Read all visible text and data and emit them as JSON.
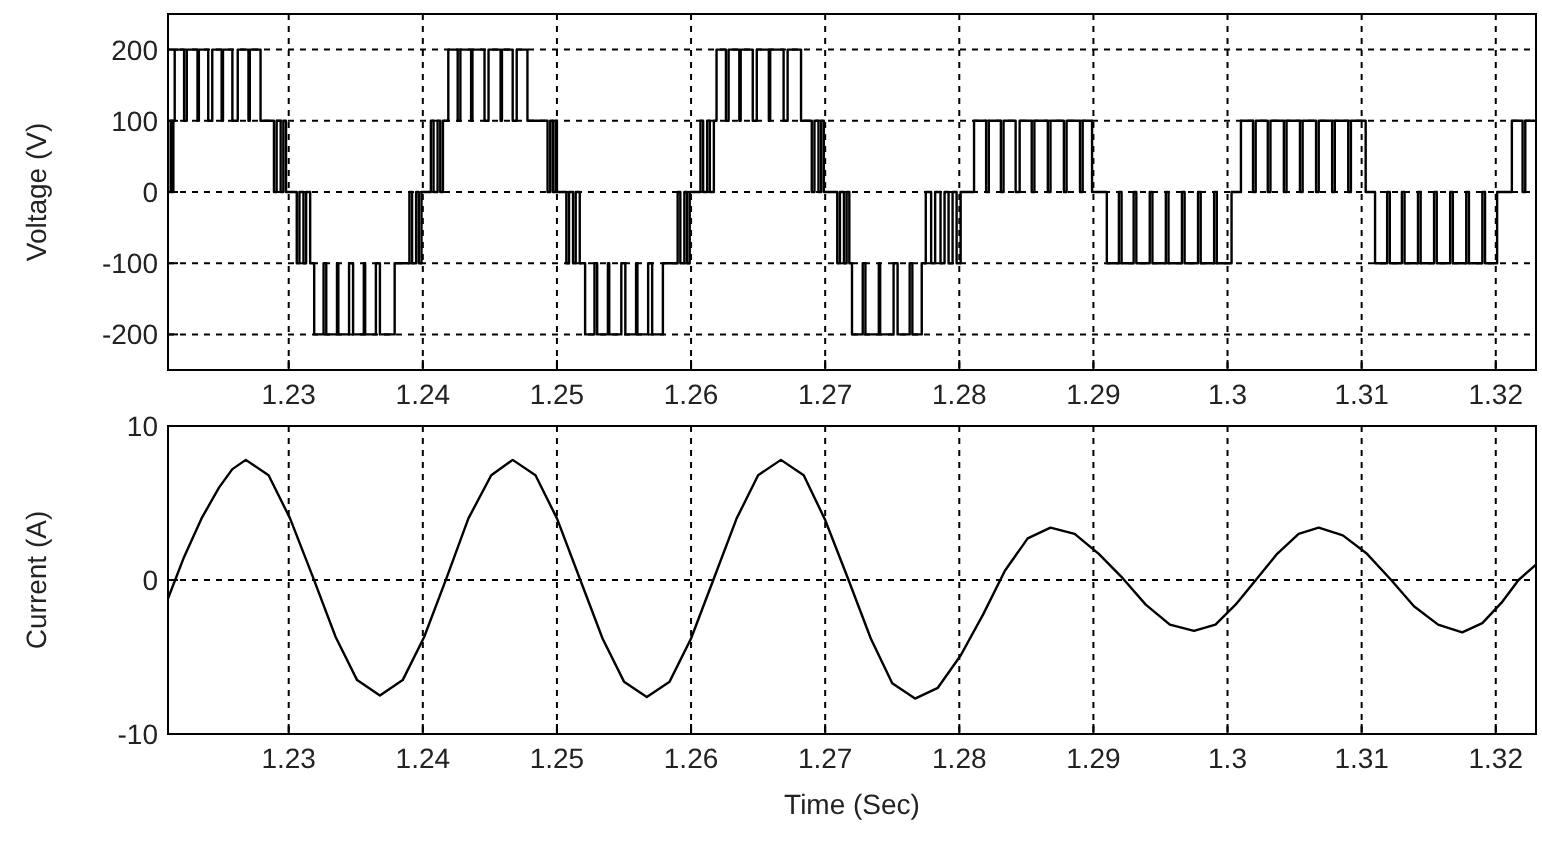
{
  "chart_data": [
    {
      "type": "step",
      "ylabel": "Voltage (V)",
      "color": "#000000",
      "line_style": "solid",
      "grid": true,
      "xlim": [
        1.221,
        1.323
      ],
      "xticks": [
        1.23,
        1.24,
        1.25,
        1.26,
        1.27,
        1.28,
        1.29,
        1.3,
        1.31,
        1.32
      ],
      "ylim": [
        -250,
        250
      ],
      "yticks": [
        -200,
        -100,
        0,
        100,
        200
      ],
      "x": [
        1.221,
        1.2212,
        1.2213,
        1.2214,
        1.2215,
        1.2222,
        1.2224,
        1.2232,
        1.2233,
        1.224,
        1.2243,
        1.225,
        1.2251,
        1.2258,
        1.2262,
        1.227,
        1.2271,
        1.2279,
        1.2289,
        1.2291,
        1.2294,
        1.2296,
        1.2298,
        1.2306,
        1.2308,
        1.2311,
        1.2313,
        1.2316,
        1.2319,
        1.2326,
        1.2328,
        1.2336,
        1.2337,
        1.2345,
        1.2348,
        1.2356,
        1.2357,
        1.2365,
        1.2368,
        1.2379,
        1.239,
        1.2392,
        1.2395,
        1.2397,
        1.2399,
        1.2406,
        1.2408,
        1.2411,
        1.2413,
        1.2415,
        1.2419,
        1.2426,
        1.2428,
        1.2436,
        1.2437,
        1.2446,
        1.2449,
        1.2458,
        1.2459,
        1.2467,
        1.247,
        1.2478,
        1.2493,
        1.2495,
        1.2497,
        1.2499,
        1.25,
        1.2507,
        1.2509,
        1.2512,
        1.2514,
        1.2517,
        1.2521,
        1.2528,
        1.253,
        1.2538,
        1.2539,
        1.2548,
        1.2551,
        1.2559,
        1.256,
        1.2568,
        1.2571,
        1.2579,
        1.259,
        1.2592,
        1.2595,
        1.2597,
        1.2599,
        1.2607,
        1.2609,
        1.2612,
        1.2614,
        1.2617,
        1.2619,
        1.2626,
        1.2628,
        1.2636,
        1.2637,
        1.2646,
        1.2649,
        1.2658,
        1.2659,
        1.2669,
        1.2672,
        1.2682,
        1.269,
        1.2692,
        1.2695,
        1.2697,
        1.2699,
        1.2709,
        1.2711,
        1.2714,
        1.2716,
        1.2718,
        1.272,
        1.2728,
        1.273,
        1.274,
        1.2741,
        1.2751,
        1.2754,
        1.2763,
        1.2765,
        1.2772,
        1.2775,
        1.2779,
        1.2782,
        1.2786,
        1.2789,
        1.2792,
        1.2795,
        1.2798,
        1.2801,
        1.2811,
        1.282,
        1.2822,
        1.2831,
        1.2833,
        1.2842,
        1.2845,
        1.2854,
        1.2856,
        1.2866,
        1.2868,
        1.2878,
        1.288,
        1.289,
        1.2892,
        1.2899,
        1.291,
        1.2919,
        1.2921,
        1.293,
        1.2932,
        1.2942,
        1.2944,
        1.2954,
        1.2956,
        1.2966,
        1.2968,
        1.2978,
        1.298,
        1.299,
        1.2992,
        1.3003,
        1.301,
        1.3019,
        1.3021,
        1.303,
        1.3032,
        1.3042,
        1.3044,
        1.3054,
        1.3056,
        1.3066,
        1.3068,
        1.3078,
        1.308,
        1.309,
        1.3092,
        1.3103,
        1.311,
        1.3119,
        1.3121,
        1.313,
        1.3132,
        1.3142,
        1.3144,
        1.3154,
        1.3156,
        1.3166,
        1.3168,
        1.3178,
        1.318,
        1.319,
        1.3192,
        1.3201,
        1.3212,
        1.322,
        1.3222,
        1.323
      ],
      "values": [
        0,
        100,
        0,
        100,
        200,
        100,
        200,
        100,
        200,
        100,
        200,
        100,
        200,
        100,
        200,
        100,
        200,
        100,
        0,
        100,
        0,
        100,
        0,
        -100,
        0,
        -100,
        0,
        -100,
        -200,
        -100,
        -200,
        -100,
        -200,
        -100,
        -200,
        -100,
        -200,
        -100,
        -200,
        -100,
        0,
        -100,
        0,
        -100,
        0,
        100,
        0,
        100,
        0,
        100,
        200,
        100,
        200,
        100,
        200,
        100,
        200,
        100,
        200,
        100,
        200,
        100,
        0,
        100,
        0,
        100,
        0,
        -100,
        0,
        -100,
        0,
        -100,
        -200,
        -100,
        -200,
        -100,
        -200,
        -100,
        -200,
        -100,
        -200,
        -100,
        -200,
        -100,
        0,
        -100,
        0,
        -100,
        0,
        100,
        0,
        100,
        0,
        100,
        200,
        100,
        200,
        100,
        200,
        100,
        200,
        100,
        200,
        100,
        200,
        100,
        0,
        100,
        0,
        100,
        0,
        -100,
        0,
        -100,
        0,
        -100,
        -200,
        -100,
        -200,
        -100,
        -200,
        -100,
        -200,
        -100,
        -200,
        -100,
        0,
        -100,
        0,
        -100,
        0,
        -100,
        0,
        -100,
        0,
        100,
        0,
        100,
        0,
        100,
        0,
        100,
        0,
        100,
        0,
        100,
        0,
        100,
        0,
        100,
        0,
        -100,
        0,
        -100,
        0,
        -100,
        0,
        -100,
        0,
        -100,
        0,
        -100,
        0,
        -100,
        0,
        -100,
        0,
        100,
        0,
        100,
        0,
        100,
        0,
        100,
        0,
        100,
        0,
        100,
        0,
        100,
        0,
        100,
        0,
        -100,
        0,
        -100,
        0,
        -100,
        0,
        -100,
        0,
        -100,
        0,
        -100,
        0,
        -100,
        0,
        -100,
        0,
        100,
        0,
        100,
        100
      ]
    },
    {
      "type": "line",
      "ylabel": "Current (A)",
      "xlabel": "Time (Sec)",
      "color": "#000000",
      "line_style": "solid",
      "grid": true,
      "xlim": [
        1.221,
        1.323
      ],
      "xticks": [
        1.23,
        1.24,
        1.25,
        1.26,
        1.27,
        1.28,
        1.29,
        1.3,
        1.31,
        1.32
      ],
      "ylim": [
        -10,
        10
      ],
      "yticks": [
        -10,
        0,
        10
      ],
      "x": [
        1.221,
        1.2222,
        1.2235,
        1.2248,
        1.2258,
        1.2268,
        1.2285,
        1.2301,
        1.2318,
        1.2335,
        1.2351,
        1.2368,
        1.2385,
        1.2401,
        1.2418,
        1.2434,
        1.2451,
        1.2467,
        1.2484,
        1.25,
        1.2517,
        1.2534,
        1.255,
        1.2567,
        1.2584,
        1.26,
        1.2617,
        1.2634,
        1.265,
        1.2667,
        1.2684,
        1.27,
        1.2717,
        1.2734,
        1.275,
        1.2767,
        1.2784,
        1.2801,
        1.2818,
        1.2834,
        1.2851,
        1.2868,
        1.2886,
        1.2904,
        1.2922,
        1.2939,
        1.2957,
        1.2975,
        1.2991,
        1.3006,
        1.3022,
        1.3037,
        1.3053,
        1.3068,
        1.3086,
        1.3104,
        1.3122,
        1.3139,
        1.3157,
        1.3175,
        1.319,
        1.3205,
        1.3217,
        1.323
      ],
      "values": [
        -1.2,
        1.5,
        4.0,
        6.0,
        7.2,
        7.8,
        6.8,
        4.0,
        0.2,
        -3.7,
        -6.5,
        -7.5,
        -6.5,
        -3.7,
        0.2,
        4.0,
        6.8,
        7.8,
        6.8,
        4.0,
        0.1,
        -3.8,
        -6.6,
        -7.6,
        -6.6,
        -3.8,
        0.1,
        4.0,
        6.8,
        7.8,
        6.8,
        3.9,
        0.1,
        -3.8,
        -6.7,
        -7.7,
        -7.0,
        -4.9,
        -2.2,
        0.6,
        2.7,
        3.4,
        3.0,
        1.7,
        0.1,
        -1.6,
        -2.9,
        -3.3,
        -2.9,
        -1.6,
        0.1,
        1.7,
        3.0,
        3.4,
        2.9,
        1.7,
        0,
        -1.7,
        -2.9,
        -3.4,
        -2.8,
        -1.4,
        0,
        1.0
      ]
    }
  ]
}
